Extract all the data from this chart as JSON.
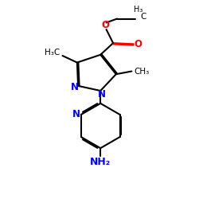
{
  "bg_color": "#ffffff",
  "bond_color": "#000000",
  "N_color": "#0000ff",
  "O_color": "#ff0000",
  "NH2_color": "#0000ff",
  "lw": 1.5,
  "dbo": 0.055,
  "xlim": [
    0,
    10
  ],
  "ylim": [
    0,
    10
  ]
}
